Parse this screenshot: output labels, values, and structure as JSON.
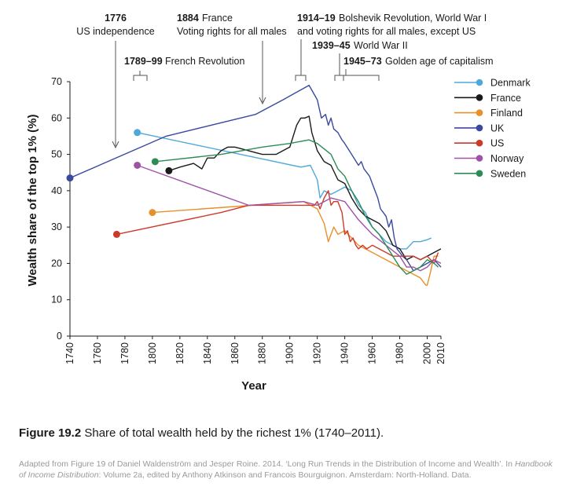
{
  "caption": {
    "label": "Figure 19.2",
    "text": " Share of total wealth held by the richest 1% (1740–2011)."
  },
  "source": {
    "part1": "Adapted from Figure 19 of Daniel Waldenström and Jesper Roine. 2014. ‘Long Run Trends in the Distribution of Income and Wealth’. In ",
    "book": "Handbook of Income Distribution",
    "part2": ": Volume 2a, edited by Anthony Atkinson and Francois Bourguignon. Amsterdam: North-Holland. Data."
  },
  "annotations": [
    {
      "year": "1776",
      "text": "US independence"
    },
    {
      "year": "1789–99",
      "text": "French Revolution"
    },
    {
      "year": "1884",
      "text": "France"
    },
    {
      "year": "",
      "text": "Voting rights for all males"
    },
    {
      "year": "1914–19",
      "text": "Bolshevik Revolution, World War I"
    },
    {
      "year": "",
      "text": "and voting rights for all males, except US"
    },
    {
      "year": "1939–45",
      "text": "World War II"
    },
    {
      "year": "1945–73",
      "text": "Golden age of capitalism"
    }
  ],
  "chart_data": {
    "type": "line",
    "xlabel": "Year",
    "ylabel": "Wealth share of the top 1% (%)",
    "xlim": [
      1740,
      2010
    ],
    "ylim": [
      0,
      70
    ],
    "x_ticks": [
      1740,
      1760,
      1780,
      1800,
      1820,
      1840,
      1860,
      1880,
      1900,
      1920,
      1940,
      1960,
      1980,
      2000,
      2010
    ],
    "y_ticks": [
      0,
      10,
      20,
      30,
      40,
      50,
      60,
      70
    ],
    "legend_position": "right",
    "grid": false,
    "series": [
      {
        "name": "Denmark",
        "color": "#4fa8d8",
        "points": [
          [
            1789,
            56
          ],
          [
            1908,
            46.5
          ],
          [
            1915,
            47
          ],
          [
            1920,
            43
          ],
          [
            1922,
            38
          ],
          [
            1925,
            40
          ],
          [
            1930,
            39
          ],
          [
            1935,
            40
          ],
          [
            1940,
            41
          ],
          [
            1945,
            40
          ],
          [
            1950,
            36
          ],
          [
            1955,
            34
          ],
          [
            1960,
            30
          ],
          [
            1965,
            28
          ],
          [
            1970,
            26
          ],
          [
            1975,
            25
          ],
          [
            1980,
            24
          ],
          [
            1985,
            24
          ],
          [
            1990,
            26
          ],
          [
            1995,
            26
          ],
          [
            2000,
            26.5
          ],
          [
            2003,
            27
          ]
        ]
      },
      {
        "name": "France",
        "color": "#1a1a1a",
        "points": [
          [
            1812,
            45.5
          ],
          [
            1820,
            46.5
          ],
          [
            1830,
            47.5
          ],
          [
            1836,
            46
          ],
          [
            1840,
            49
          ],
          [
            1845,
            49
          ],
          [
            1850,
            51
          ],
          [
            1855,
            52
          ],
          [
            1860,
            52
          ],
          [
            1865,
            51.5
          ],
          [
            1870,
            51
          ],
          [
            1875,
            50.5
          ],
          [
            1880,
            50
          ],
          [
            1886,
            50
          ],
          [
            1890,
            50
          ],
          [
            1895,
            51
          ],
          [
            1900,
            52
          ],
          [
            1905,
            58
          ],
          [
            1908,
            60
          ],
          [
            1911,
            60
          ],
          [
            1914,
            60.5
          ],
          [
            1916,
            56
          ],
          [
            1920,
            51
          ],
          [
            1925,
            48
          ],
          [
            1930,
            47
          ],
          [
            1935,
            43
          ],
          [
            1940,
            42
          ],
          [
            1945,
            38
          ],
          [
            1950,
            35
          ],
          [
            1955,
            33
          ],
          [
            1960,
            32
          ],
          [
            1965,
            31
          ],
          [
            1970,
            29
          ],
          [
            1975,
            25
          ],
          [
            1980,
            24
          ],
          [
            1985,
            21
          ],
          [
            1990,
            22
          ],
          [
            1995,
            21
          ],
          [
            2000,
            22
          ],
          [
            2005,
            23
          ],
          [
            2010,
            24
          ]
        ]
      },
      {
        "name": "Finland",
        "color": "#e8902a",
        "points": [
          [
            1800,
            34
          ],
          [
            1910,
            37
          ],
          [
            1920,
            35
          ],
          [
            1925,
            31
          ],
          [
            1928,
            26
          ],
          [
            1932,
            30
          ],
          [
            1935,
            28
          ],
          [
            1940,
            29
          ],
          [
            1945,
            27
          ],
          [
            1950,
            25
          ],
          [
            1960,
            23
          ],
          [
            1970,
            21
          ],
          [
            1980,
            19
          ],
          [
            1985,
            18
          ],
          [
            1990,
            17
          ],
          [
            1995,
            16
          ],
          [
            1999,
            14
          ],
          [
            2000,
            14
          ],
          [
            2002,
            17
          ],
          [
            2005,
            22
          ],
          [
            2008,
            22
          ]
        ]
      },
      {
        "name": "UK",
        "color": "#3b4a9e",
        "points": [
          [
            1740,
            43.5
          ],
          [
            1810,
            55
          ],
          [
            1875,
            61
          ],
          [
            1895,
            65
          ],
          [
            1914,
            69
          ],
          [
            1920,
            65
          ],
          [
            1923,
            60
          ],
          [
            1926,
            61
          ],
          [
            1928,
            58
          ],
          [
            1930,
            60
          ],
          [
            1932,
            57
          ],
          [
            1935,
            56
          ],
          [
            1938,
            54
          ],
          [
            1940,
            53
          ],
          [
            1945,
            50
          ],
          [
            1950,
            47
          ],
          [
            1952,
            48
          ],
          [
            1954,
            46
          ],
          [
            1956,
            45
          ],
          [
            1958,
            44
          ],
          [
            1960,
            42
          ],
          [
            1962,
            40
          ],
          [
            1964,
            38
          ],
          [
            1966,
            35
          ],
          [
            1968,
            34
          ],
          [
            1970,
            33
          ],
          [
            1972,
            30
          ],
          [
            1974,
            32
          ],
          [
            1976,
            27
          ],
          [
            1978,
            24
          ],
          [
            1980,
            23
          ],
          [
            1982,
            22
          ],
          [
            1985,
            21
          ],
          [
            1990,
            18
          ],
          [
            1995,
            19
          ],
          [
            2000,
            20
          ],
          [
            2005,
            21
          ],
          [
            2010,
            19
          ]
        ]
      },
      {
        "name": "US",
        "color": "#cc3a2a",
        "points": [
          [
            1774,
            28
          ],
          [
            1850,
            34
          ],
          [
            1870,
            36
          ],
          [
            1900,
            36
          ],
          [
            1910,
            36
          ],
          [
            1918,
            36
          ],
          [
            1920,
            37
          ],
          [
            1922,
            35
          ],
          [
            1925,
            38
          ],
          [
            1928,
            40
          ],
          [
            1930,
            36
          ],
          [
            1932,
            37
          ],
          [
            1935,
            37
          ],
          [
            1938,
            34
          ],
          [
            1940,
            28
          ],
          [
            1942,
            29
          ],
          [
            1944,
            26
          ],
          [
            1946,
            27
          ],
          [
            1948,
            25
          ],
          [
            1950,
            24
          ],
          [
            1953,
            25
          ],
          [
            1956,
            24
          ],
          [
            1960,
            25
          ],
          [
            1965,
            24
          ],
          [
            1970,
            23
          ],
          [
            1975,
            22
          ],
          [
            1980,
            22
          ],
          [
            1985,
            22
          ],
          [
            1990,
            22
          ],
          [
            1995,
            21
          ],
          [
            2000,
            22
          ],
          [
            2005,
            20
          ],
          [
            2008,
            23
          ]
        ]
      },
      {
        "name": "Norway",
        "color": "#a052a8",
        "points": [
          [
            1789,
            47
          ],
          [
            1870,
            36
          ],
          [
            1910,
            37
          ],
          [
            1920,
            36
          ],
          [
            1930,
            38
          ],
          [
            1940,
            37
          ],
          [
            1950,
            32
          ],
          [
            1960,
            28
          ],
          [
            1970,
            25
          ],
          [
            1980,
            22
          ],
          [
            1985,
            19
          ],
          [
            1990,
            19
          ],
          [
            1995,
            18
          ],
          [
            2000,
            19
          ],
          [
            2005,
            21
          ],
          [
            2010,
            20
          ]
        ]
      },
      {
        "name": "Sweden",
        "color": "#2e8b57",
        "points": [
          [
            1802,
            48
          ],
          [
            1850,
            50
          ],
          [
            1880,
            52
          ],
          [
            1900,
            53
          ],
          [
            1914,
            54
          ],
          [
            1920,
            53
          ],
          [
            1930,
            50
          ],
          [
            1935,
            46
          ],
          [
            1940,
            44
          ],
          [
            1945,
            40
          ],
          [
            1950,
            37
          ],
          [
            1955,
            33
          ],
          [
            1960,
            30
          ],
          [
            1965,
            28
          ],
          [
            1970,
            25
          ],
          [
            1975,
            22
          ],
          [
            1980,
            19
          ],
          [
            1985,
            17
          ],
          [
            1990,
            18
          ],
          [
            1995,
            19
          ],
          [
            2000,
            21
          ],
          [
            2005,
            20
          ],
          [
            2008,
            19
          ]
        ]
      }
    ]
  }
}
